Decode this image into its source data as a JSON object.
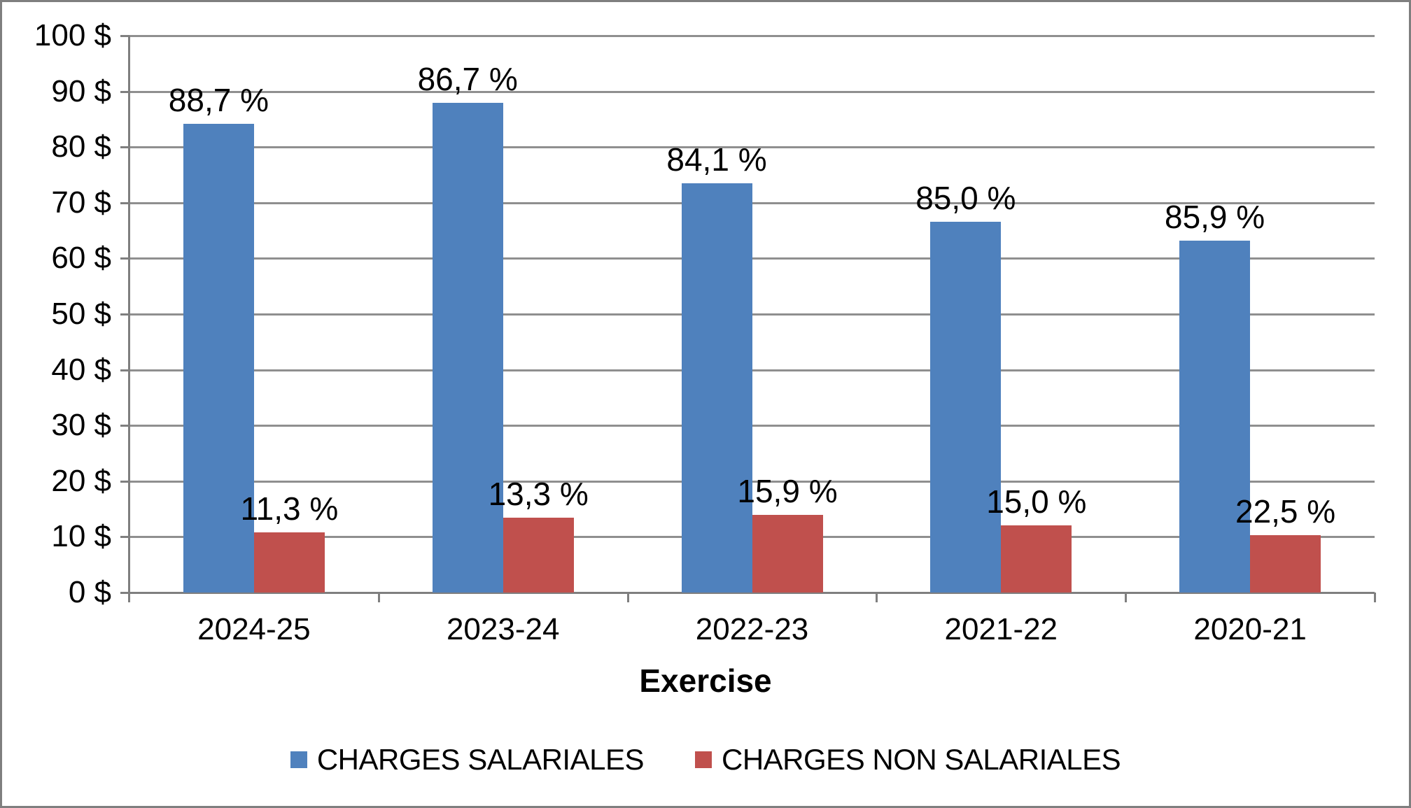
{
  "chart_data": {
    "type": "bar",
    "title": "",
    "xlabel": "Exercise",
    "ylabel": "",
    "categories": [
      "2024-25",
      "2023-24",
      "2022-23",
      "2021-22",
      "2020-21"
    ],
    "series": [
      {
        "name": "CHARGES SALARIALES",
        "color": "#4F81BD",
        "values": [
          84.2,
          88.0,
          73.5,
          66.6,
          63.2
        ],
        "data_labels": [
          "88,7 %",
          "86,7 %",
          "84,1 %",
          "85,0 %",
          "85,9 %"
        ]
      },
      {
        "name": "CHARGES NON SALARIALES",
        "color": "#C0504D",
        "values": [
          10.8,
          13.5,
          13.9,
          12.0,
          10.3
        ],
        "data_labels": [
          "11,3 %",
          "13,3 %",
          "15,9 %",
          "15,0 %",
          "22,5 %"
        ]
      }
    ],
    "ylim": [
      0,
      100
    ],
    "ytick_step": 10,
    "yticks": [
      "100 $",
      "90 $",
      "80 $",
      "70 $",
      "60 $",
      "50 $",
      "40 $",
      "30 $",
      "20 $",
      "10 $",
      "0 $"
    ],
    "grid": true,
    "legend_position": "bottom"
  },
  "colors": {
    "grid": "#8F8F8F",
    "axis": "#7F7F7F",
    "border": "#7F7F7F",
    "background": "#FFFFFF",
    "text": "#000000"
  }
}
